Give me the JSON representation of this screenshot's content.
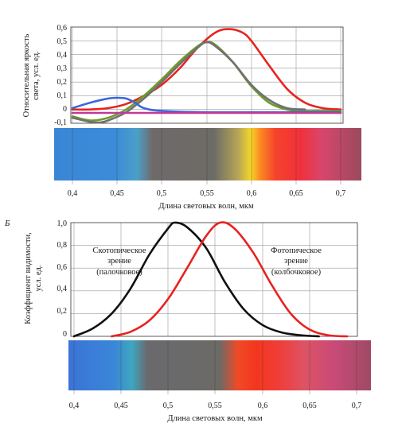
{
  "charts": [
    {
      "title": "",
      "ylabel_lines": [
        "Относительная яркость",
        "света, усл. ед."
      ],
      "xlabel": "Длина световых волн, мкм",
      "xlim": [
        0.4,
        0.7
      ],
      "ylim": [
        -0.1,
        0.6
      ],
      "xticks": [
        "0,4",
        "0,45",
        "0,5",
        "0,55",
        "0,6",
        "0,65",
        "0,7"
      ],
      "yticks": [
        "0,6",
        "0,5",
        "0,4",
        "0,3",
        "0,2",
        "0,1",
        "0",
        "-0,1"
      ],
      "colors": {
        "red": "#e8231f",
        "green": "#6e9a2a",
        "gray": "#707070",
        "blue": "#3c66d8",
        "pink": "#c03a98"
      }
    },
    {
      "panel_letter": "Б",
      "ylabel_lines": [
        "Коэффициент видимости,",
        "усл. ед."
      ],
      "xlabel": "Длина световых волн, мкм",
      "xlim": [
        0.4,
        0.7
      ],
      "ylim": [
        0,
        1.0
      ],
      "xticks": [
        "0,4",
        "0,45",
        "0,5",
        "0,55",
        "0,6",
        "0,65",
        "0,7"
      ],
      "yticks": [
        "1,0",
        "0,8",
        "0,6",
        "0,4",
        "0,2",
        "0"
      ],
      "annotations": {
        "scotopic": [
          "Скотопическое",
          "зрение",
          "(палочковое)"
        ],
        "photopic": [
          "Фотопическое",
          "зрение",
          "(колбочковое)"
        ]
      },
      "colors": {
        "scotopic": "#111111",
        "photopic": "#e8231f"
      }
    }
  ],
  "chart_data": [
    {
      "type": "line",
      "xlim": [
        0.4,
        0.7
      ],
      "ylim": [
        -0.1,
        0.6
      ],
      "grid": true,
      "series": [
        {
          "color": "#e8231f",
          "x": [
            0.4,
            0.42,
            0.44,
            0.46,
            0.48,
            0.5,
            0.52,
            0.54,
            0.56,
            0.575,
            0.59,
            0.6,
            0.62,
            0.64,
            0.66,
            0.68,
            0.7
          ],
          "y": [
            0.0,
            0.0,
            0.01,
            0.04,
            0.1,
            0.18,
            0.3,
            0.45,
            0.56,
            0.585,
            0.56,
            0.5,
            0.32,
            0.15,
            0.05,
            0.01,
            0.0
          ]
        },
        {
          "color": "#6e9a2a",
          "x": [
            0.4,
            0.42,
            0.44,
            0.46,
            0.48,
            0.5,
            0.52,
            0.54,
            0.55,
            0.56,
            0.58,
            0.6,
            0.62,
            0.64,
            0.66,
            0.68,
            0.7
          ],
          "y": [
            -0.05,
            -0.08,
            -0.06,
            0.0,
            0.1,
            0.22,
            0.35,
            0.46,
            0.49,
            0.47,
            0.34,
            0.17,
            0.05,
            0.0,
            -0.01,
            -0.01,
            -0.01
          ]
        },
        {
          "color": "#707070",
          "x": [
            0.4,
            0.42,
            0.43,
            0.44,
            0.46,
            0.48,
            0.5,
            0.52,
            0.54,
            0.55,
            0.56,
            0.58,
            0.6,
            0.62,
            0.64,
            0.66
          ],
          "y": [
            -0.06,
            -0.09,
            -0.095,
            -0.08,
            -0.02,
            0.08,
            0.2,
            0.33,
            0.45,
            0.49,
            0.46,
            0.34,
            0.18,
            0.07,
            0.01,
            0.0
          ]
        },
        {
          "color": "#3c66d8",
          "x": [
            0.4,
            0.42,
            0.44,
            0.45,
            0.46,
            0.47,
            0.48,
            0.5,
            0.55,
            0.6,
            0.65,
            0.7
          ],
          "y": [
            0.01,
            0.05,
            0.08,
            0.085,
            0.08,
            0.05,
            0.01,
            -0.01,
            -0.02,
            -0.02,
            -0.02,
            -0.02
          ]
        },
        {
          "color": "#c03a98",
          "x": [
            0.4,
            0.45,
            0.5,
            0.55,
            0.6,
            0.65,
            0.7
          ],
          "y": [
            -0.025,
            -0.025,
            -0.025,
            -0.025,
            -0.025,
            -0.025,
            -0.025
          ]
        }
      ]
    },
    {
      "type": "line",
      "xlim": [
        0.4,
        0.7
      ],
      "ylim": [
        0,
        1.0
      ],
      "grid": true,
      "series": [
        {
          "name": "Скотопическое зрение (палочковое)",
          "color": "#111111",
          "x": [
            0.4,
            0.42,
            0.44,
            0.46,
            0.48,
            0.5,
            0.507,
            0.52,
            0.54,
            0.56,
            0.58,
            0.6,
            0.62,
            0.64,
            0.66
          ],
          "y": [
            0.0,
            0.07,
            0.2,
            0.42,
            0.72,
            0.95,
            1.0,
            0.96,
            0.78,
            0.48,
            0.24,
            0.1,
            0.035,
            0.01,
            0.0
          ]
        },
        {
          "name": "Фотопическое зрение (колбочковое)",
          "color": "#e8231f",
          "x": [
            0.44,
            0.46,
            0.48,
            0.5,
            0.52,
            0.54,
            0.555,
            0.57,
            0.59,
            0.61,
            0.63,
            0.65,
            0.67,
            0.69
          ],
          "y": [
            0.0,
            0.04,
            0.14,
            0.33,
            0.6,
            0.88,
            1.0,
            0.95,
            0.74,
            0.45,
            0.2,
            0.06,
            0.01,
            0.0
          ]
        }
      ]
    }
  ]
}
